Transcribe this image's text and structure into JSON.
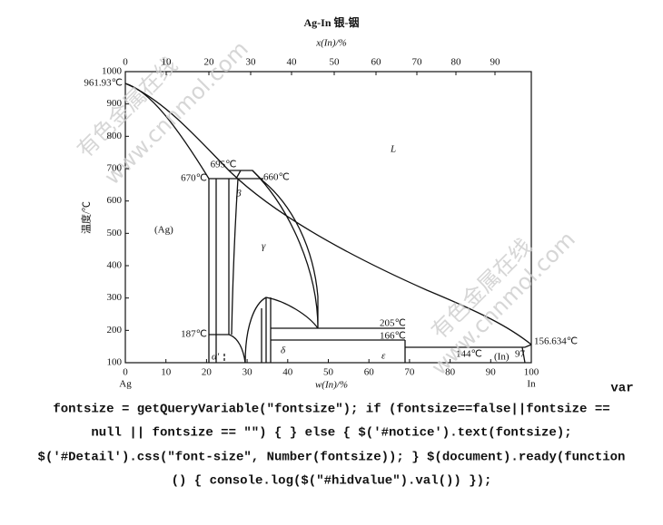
{
  "figure": {
    "title": "Ag-In  银-铟",
    "top_axis_label": "x(In)/%",
    "bottom_axis_label": "w(In)/%",
    "y_axis_label": "温度/℃",
    "top_ticks": [
      0,
      10,
      20,
      30,
      40,
      50,
      60,
      70,
      80,
      90
    ],
    "bottom_ticks": [
      0,
      10,
      20,
      30,
      40,
      50,
      60,
      70,
      80,
      90,
      100
    ],
    "y_ticks": [
      100,
      200,
      300,
      400,
      500,
      600,
      700,
      800,
      900,
      1000
    ],
    "left_end": "Ag",
    "right_end": "In",
    "annotations": [
      "961.93℃",
      "695℃",
      "670℃",
      "660℃",
      "β",
      "L",
      "(Ag)",
      "γ",
      "205℃",
      "166℃",
      "187℃",
      "α'",
      "δ",
      "ε",
      "144℃",
      "(In)",
      "97",
      "156.634℃"
    ],
    "watermarks": [
      "有色金属在线",
      "www.cnnmol.com",
      "有色金属在线",
      "www.cnnmol.com"
    ]
  },
  "code_text": [
    "var",
    "fontsize = getQueryVariable(\"fontsize\"); if (fontsize==false||fontsize ==",
    "null || fontsize == \"\") { } else { $('#notice').text(fontsize);",
    "$('#Detail').css(\"font-size\", Number(fontsize)); } $(document).ready(function",
    "() { console.log($(\"#hidvalue\").val()) });"
  ]
}
